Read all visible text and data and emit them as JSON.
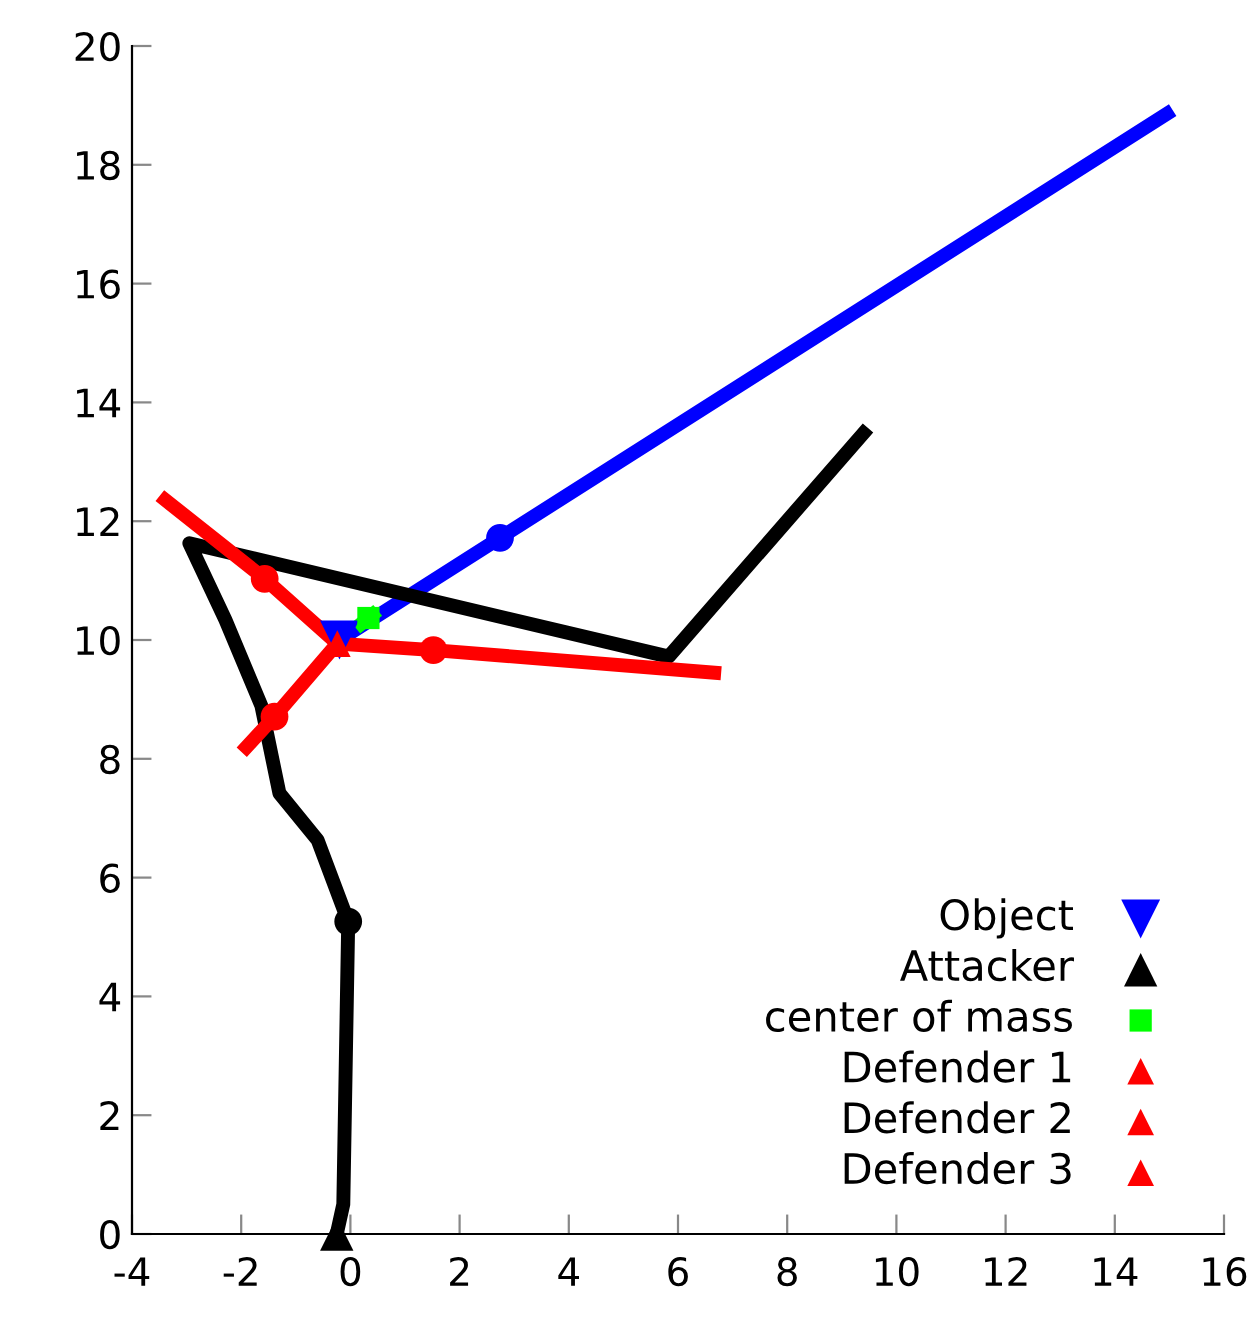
{
  "chart_data": {
    "type": "line",
    "xlim": [
      -4,
      16
    ],
    "ylim": [
      0,
      20
    ],
    "xticks": [
      -4,
      -2,
      0,
      2,
      4,
      6,
      8,
      10,
      12,
      14,
      16
    ],
    "yticks": [
      0,
      2,
      4,
      6,
      8,
      10,
      12,
      14,
      16,
      18,
      20
    ],
    "grid": false,
    "legend": "bottom right",
    "line_style": "solid",
    "series": [
      {
        "color": "#0000ff",
        "marker": "none",
        "x": [
          -0.2,
          2.74,
          15.06
        ],
        "values": [
          10.0,
          11.72,
          18.92
        ]
      },
      {
        "color": "#000000",
        "marker": "none",
        "x": [
          -0.25,
          -0.13,
          -0.04,
          -0.6,
          -1.3,
          -1.63,
          -2.29,
          -2.95,
          5.83,
          9.48
        ],
        "values": [
          0,
          0.5,
          5.26,
          6.63,
          7.42,
          8.89,
          10.34,
          11.63,
          9.72,
          13.57
        ]
      },
      {
        "color": "#00ff00",
        "marker": "none",
        "x": [
          0.1,
          0.5
        ],
        "values": [
          10.2,
          10.5
        ]
      },
      {
        "color": "#ff0000",
        "marker": "none",
        "x": [
          -0.24,
          -1.57,
          -3.49
        ],
        "values": [
          9.94,
          11.03,
          12.43
        ]
      },
      {
        "color": "#ff0000",
        "marker": "none",
        "x": [
          -0.24,
          -1.39,
          -1.99
        ],
        "values": [
          9.94,
          8.71,
          8.11
        ]
      },
      {
        "color": "#ff0000",
        "marker": "none",
        "x": [
          -0.24,
          1.52,
          6.79
        ],
        "values": [
          9.94,
          9.83,
          9.44
        ]
      },
      {
        "type": "scatter",
        "color": "#0000ff",
        "marker": "circle",
        "x": [
          2.74
        ],
        "values": [
          11.72
        ]
      },
      {
        "type": "scatter",
        "color": "#000000",
        "marker": "circle",
        "x": [
          -0.04
        ],
        "values": [
          5.26
        ]
      },
      {
        "type": "scatter",
        "color": "#ff0000",
        "marker": "circle",
        "x": [
          -1.57,
          -1.39,
          1.52
        ],
        "values": [
          11.03,
          8.71,
          9.83
        ]
      },
      {
        "type": "scatter",
        "name": "Object",
        "color": "#0000ff",
        "marker": "triangle_down",
        "x": [
          -0.2
        ],
        "values": [
          10.0
        ]
      },
      {
        "type": "scatter",
        "name": "Attacker",
        "color": "#000000",
        "marker": "triangle",
        "x": [
          -0.25
        ],
        "values": [
          0
        ]
      },
      {
        "type": "scatter",
        "name": "center of mass",
        "color": "#00ff00",
        "marker": "square",
        "x": [
          0.33
        ],
        "values": [
          10.37
        ]
      },
      {
        "type": "scatter",
        "name": "Defender 1",
        "color": "#ff0000",
        "marker": "triangle",
        "x": [
          null
        ],
        "values": [
          null
        ]
      },
      {
        "type": "scatter",
        "name": "Defender 2",
        "color": "#ff0000",
        "marker": "triangle",
        "x": [
          null
        ],
        "values": [
          null
        ]
      },
      {
        "type": "scatter",
        "name": "Defender 3",
        "color": "#ff0000",
        "marker": "triangle",
        "x": [
          -0.24
        ],
        "values": [
          9.94
        ]
      }
    ]
  }
}
